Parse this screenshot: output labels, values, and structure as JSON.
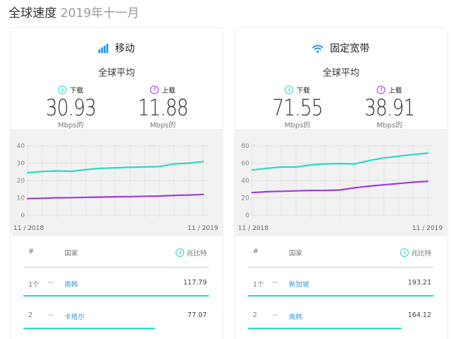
{
  "page": {
    "title_main": "全球速度",
    "title_date": "2019年十一月"
  },
  "cards": [
    {
      "key": "mobile",
      "title": "移动",
      "icon": "signal-bars-icon",
      "avg_title": "全球平均",
      "download": {
        "label": "下载",
        "value": "30.93",
        "unit": "Mbps的"
      },
      "upload": {
        "label": "上载",
        "value": "11.88",
        "unit": "Mbps的"
      },
      "chart_data": {
        "type": "line",
        "x_labels": [
          "11 / 2018",
          "11 / 2019"
        ],
        "ylim": [
          0,
          40
        ],
        "yticks": [
          "0",
          "10",
          "20",
          "30",
          "40"
        ],
        "grid": true,
        "series": [
          {
            "color": "#2bd9c4",
            "values": [
              24.5,
              25.2,
              25.5,
              25.3,
              26.3,
              27,
              27.3,
              27.6,
              27.8,
              28,
              29.5,
              30,
              30.9
            ]
          },
          {
            "color": "#9d3fd8",
            "values": [
              9.5,
              9.7,
              10,
              10.1,
              10.3,
              10.4,
              10.6,
              10.7,
              10.9,
              11,
              11.4,
              11.6,
              11.9
            ]
          }
        ]
      },
      "table": {
        "col_rank": "#",
        "col_country": "国家",
        "col_speed": "兆比特",
        "rows": [
          {
            "rank": "1个",
            "change": "--",
            "country": "南韩",
            "speed": "117.79",
            "bar_frac": 1.0
          },
          {
            "rank": "2",
            "change": "--",
            "country": "卡塔尔",
            "speed": "77.07",
            "bar_frac": 0.71
          }
        ]
      }
    },
    {
      "key": "fixed",
      "title": "固定宽带",
      "icon": "wifi-icon",
      "avg_title": "全球平均",
      "download": {
        "label": "下载",
        "value": "71.55",
        "unit": "Mbps的"
      },
      "upload": {
        "label": "上载",
        "value": "38.91",
        "unit": "Mbps的"
      },
      "chart_data": {
        "type": "line",
        "x_labels": [
          "11 / 2018",
          "11 / 2019"
        ],
        "ylim": [
          0,
          80
        ],
        "yticks": [
          "0",
          "20",
          "40",
          "60",
          "80"
        ],
        "grid": true,
        "series": [
          {
            "color": "#2bd9c4",
            "values": [
              52,
              54,
              55.5,
              55.5,
              58,
              59,
              59.5,
              59,
              63,
              66,
              68,
              70,
              71.5
            ]
          },
          {
            "color": "#9d3fd8",
            "values": [
              26,
              27,
              27.5,
              28,
              28.5,
              28.5,
              29,
              31.5,
              33.5,
              35,
              36.5,
              38,
              38.9
            ]
          }
        ]
      },
      "table": {
        "col_rank": "#",
        "col_country": "国家",
        "col_speed": "兆比特",
        "rows": [
          {
            "rank": "1个",
            "change": "--",
            "country": "新加坡",
            "speed": "193.21",
            "bar_frac": 1.0
          },
          {
            "rank": "2",
            "change": "--",
            "country": "南韩",
            "speed": "164.12",
            "bar_frac": 0.83
          }
        ]
      }
    }
  ]
}
